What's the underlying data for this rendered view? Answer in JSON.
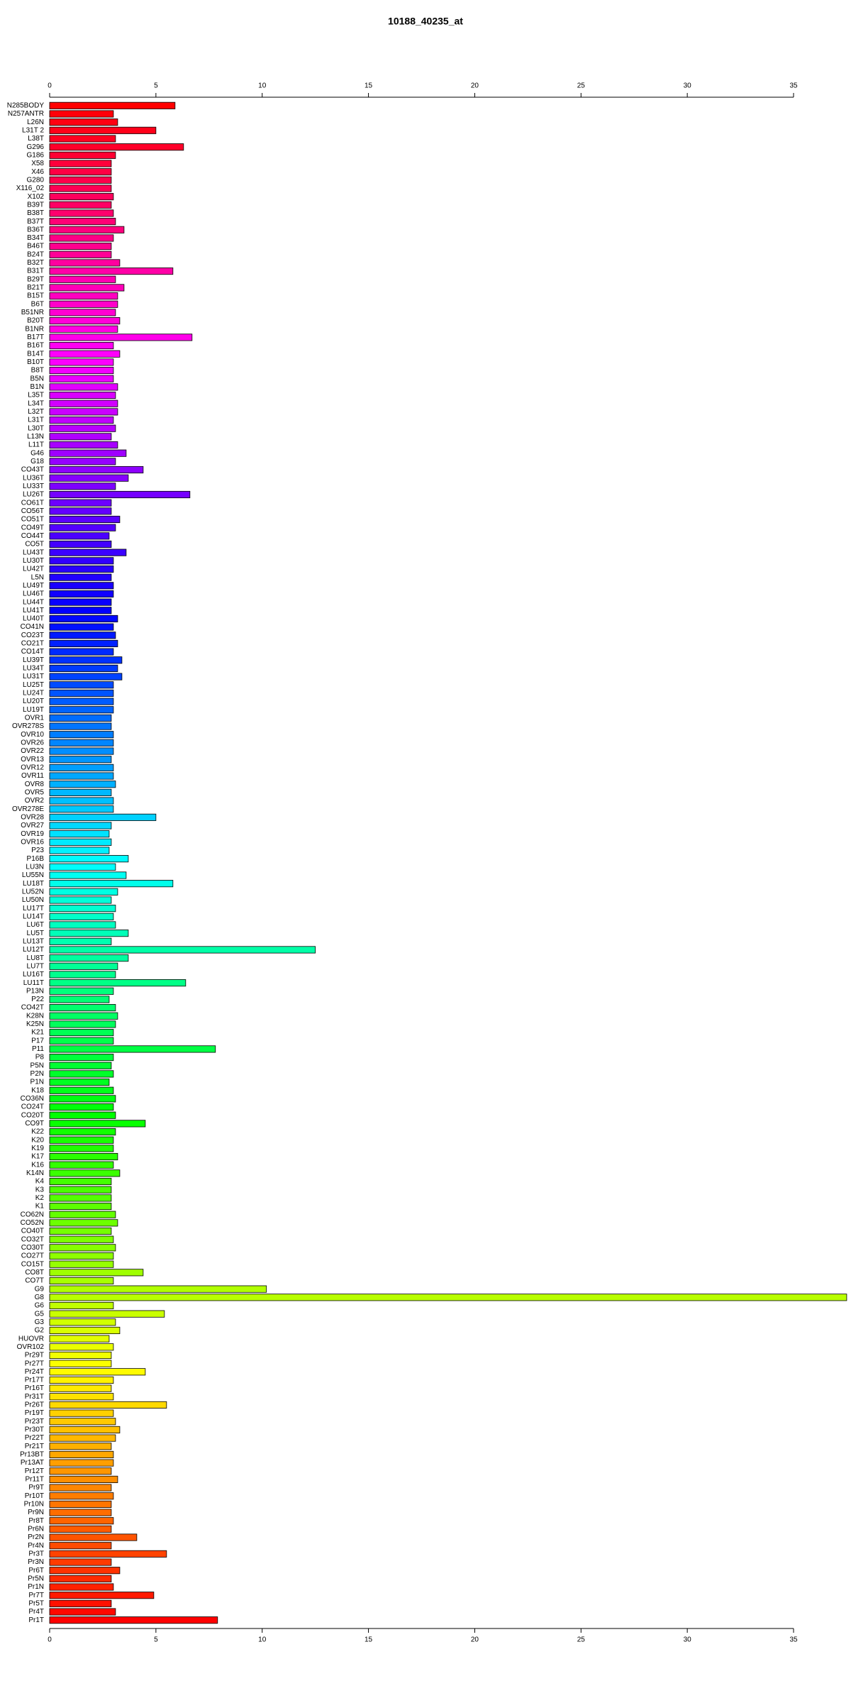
{
  "chart_data": {
    "type": "barh",
    "title": "10188_40235_at",
    "categories": [
      "N285BODY",
      "N257ANTR",
      "L26N",
      "L31T 2",
      "L38T",
      "G296",
      "G186",
      "X58",
      "X46",
      "G280",
      "X116_02",
      "X102",
      "B39T",
      "B38T",
      "B37T",
      "B36T",
      "B34T",
      "B46T",
      "B24T",
      "B32T",
      "B31T",
      "B29T",
      "B21T",
      "B15T",
      "B6T",
      "B51NR",
      "B20T",
      "B1NR",
      "B17T",
      "B16T",
      "B14T",
      "B10T",
      "B8T",
      "B5N",
      "B1N",
      "L35T",
      "L34T",
      "L32T",
      "L31T",
      "L30T",
      "L13N",
      "L11T",
      "G46",
      "G18",
      "CO43T",
      "LU36T",
      "LU33T",
      "LU26T",
      "CO61T",
      "CO56T",
      "CO51T",
      "CO49T",
      "CO44T",
      "CO5T",
      "LU43T",
      "LU30T",
      "LU42T",
      "L5N",
      "LU49T",
      "LU46T",
      "LU44T",
      "LU41T",
      "LU40T",
      "CO41N",
      "CO23T",
      "CO21T",
      "CO14T",
      "LU39T",
      "LU34T",
      "LU31T",
      "LU25T",
      "LU24T",
      "LU20T",
      "LU19T",
      "OVR1",
      "OVR278S",
      "OVR10",
      "OVR26",
      "OVR22",
      "OVR13",
      "OVR12",
      "OVR11",
      "OVR8",
      "OVR5",
      "OVR2",
      "OVR278E",
      "OVR28",
      "OVR27",
      "OVR19",
      "OVR16",
      "P23",
      "P16B",
      "LU3N",
      "LU55N",
      "LU18T",
      "LU52N",
      "LU50N",
      "LU17T",
      "LU14T",
      "LU6T",
      "LU5T",
      "LU13T",
      "LU12T",
      "LU8T",
      "LU7T",
      "LU16T",
      "LU11T",
      "P13N",
      "P22",
      "CO42T",
      "K28N",
      "K25N",
      "K21",
      "P17",
      "P11",
      "P8",
      "P5N",
      "P2N",
      "P1N",
      "K18",
      "CO36N",
      "CO24T",
      "CO20T",
      "CO9T",
      "K22",
      "K20",
      "K19",
      "K17",
      "K16",
      "K14N",
      "K4",
      "K3",
      "K2",
      "K1",
      "CO62N",
      "CO52N",
      "CO40T",
      "CO32T",
      "CO30T",
      "CO27T",
      "CO15T",
      "CO8T",
      "CO7T",
      "G9",
      "G8",
      "G6",
      "G5",
      "G3",
      "G2",
      "HUOVR",
      "OVR102",
      "Pr29T",
      "Pr27T",
      "Pr24T",
      "Pr17T",
      "Pr16T",
      "Pr31T",
      "Pr26T",
      "Pr19T",
      "Pr23T",
      "Pr30T",
      "Pr22T",
      "Pr21T",
      "Pr13BT",
      "Pr13AT",
      "Pr12T",
      "Pr11T",
      "Pr9T",
      "Pr10T",
      "Pr10N",
      "Pr9N",
      "Pr8T",
      "Pr6N",
      "Pr2N",
      "Pr4N",
      "Pr3T",
      "Pr3N",
      "Pr6T",
      "Pr5N",
      "Pr1N",
      "Pr7T",
      "Pr5T",
      "Pr4T",
      "Pr1T"
    ],
    "values": [
      5.9,
      3.0,
      3.2,
      5.0,
      3.1,
      6.3,
      3.1,
      2.9,
      2.9,
      2.9,
      2.9,
      3.0,
      2.9,
      3.0,
      3.1,
      3.5,
      3.0,
      2.9,
      2.9,
      3.3,
      5.8,
      3.1,
      3.5,
      3.2,
      3.2,
      3.1,
      3.3,
      3.2,
      6.7,
      3.0,
      3.3,
      3.0,
      3.0,
      3.0,
      3.2,
      3.1,
      3.2,
      3.2,
      3.0,
      3.1,
      2.9,
      3.2,
      3.6,
      3.1,
      4.4,
      3.7,
      3.1,
      6.6,
      2.9,
      2.9,
      3.3,
      3.1,
      2.8,
      2.9,
      3.6,
      3.0,
      3.0,
      2.9,
      3.0,
      3.0,
      2.9,
      2.9,
      3.2,
      3.0,
      3.1,
      3.2,
      3.0,
      3.4,
      3.2,
      3.4,
      3.0,
      3.0,
      3.0,
      3.0,
      2.9,
      2.9,
      3.0,
      3.0,
      3.0,
      2.9,
      3.0,
      3.0,
      3.1,
      2.9,
      3.0,
      3.0,
      5.0,
      2.9,
      2.8,
      2.9,
      2.8,
      3.7,
      3.1,
      3.6,
      5.8,
      3.2,
      2.9,
      3.1,
      3.0,
      3.1,
      3.7,
      2.9,
      12.5,
      3.7,
      3.2,
      3.1,
      6.4,
      3.0,
      2.8,
      3.1,
      3.2,
      3.1,
      3.0,
      3.0,
      7.8,
      3.0,
      2.9,
      3.0,
      2.8,
      3.0,
      3.1,
      3.0,
      3.1,
      4.5,
      3.1,
      3.0,
      3.0,
      3.2,
      3.0,
      3.3,
      2.9,
      2.9,
      2.9,
      2.9,
      3.1,
      3.2,
      2.9,
      3.0,
      3.1,
      3.0,
      3.0,
      4.4,
      3.0,
      10.2,
      37.5,
      3.0,
      5.4,
      3.1,
      3.3,
      2.8,
      3.0,
      2.9,
      2.9,
      4.5,
      3.0,
      2.9,
      3.0,
      5.5,
      3.0,
      3.1,
      3.3,
      3.1,
      2.9,
      3.0,
      3.0,
      2.9,
      3.2,
      2.9,
      3.0,
      2.9,
      2.9,
      3.0,
      2.9,
      4.1,
      2.9,
      5.5,
      2.9,
      3.3,
      2.9,
      3.0,
      4.9,
      2.9,
      3.1,
      7.9
    ],
    "color_hue_range": [
      360,
      0
    ],
    "edge_color": "#000000",
    "xlim": [
      0,
      35
    ],
    "xticks": [
      0,
      5,
      10,
      15,
      20,
      25,
      30,
      35
    ],
    "grid": false
  }
}
